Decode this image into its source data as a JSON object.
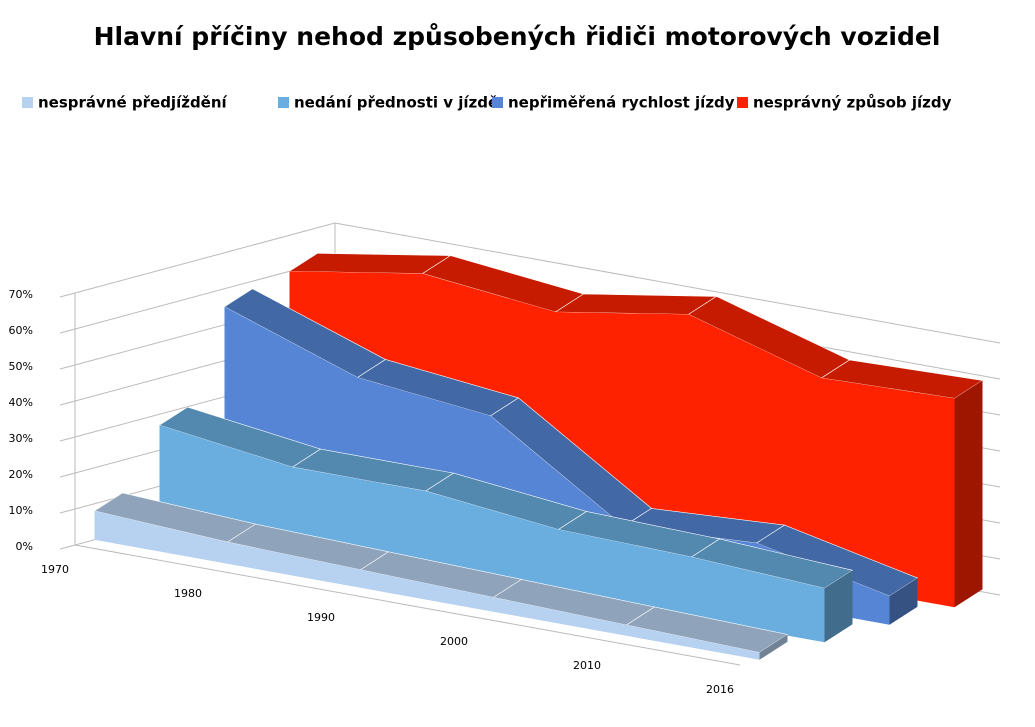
{
  "chart_data": {
    "type": "area3d",
    "title": "Hlavní příčiny nehod způsobených řidiči motorových vozidel",
    "categories": [
      "1970",
      "1980",
      "1990",
      "2000",
      "2010",
      "2016"
    ],
    "series": [
      {
        "name": "nesprávné předjíždění",
        "color": "#b7d1f0",
        "values": [
          8,
          6,
          5,
          4,
          3,
          2
        ]
      },
      {
        "name": "nedání přednosti v jízdě",
        "color": "#6aaee0",
        "values": [
          27,
          22,
          22,
          18,
          17,
          15
        ]
      },
      {
        "name": "nepřiměřená rychlost jízdy",
        "color": "#5585d4",
        "values": [
          55,
          42,
          38,
          14,
          16,
          8
        ]
      },
      {
        "name": "nesprávný způsob jízdy",
        "color": "#ff2200",
        "values": [
          60,
          66,
          62,
          68,
          57,
          58
        ]
      }
    ],
    "ylim": [
      0,
      70
    ],
    "yticks": [
      {
        "value": 0,
        "label": "0%"
      },
      {
        "value": 10,
        "label": "10%"
      },
      {
        "value": 20,
        "label": "20%"
      },
      {
        "value": 30,
        "label": "30%"
      },
      {
        "value": 40,
        "label": "40%"
      },
      {
        "value": 50,
        "label": "50%"
      },
      {
        "value": 60,
        "label": "60%"
      },
      {
        "value": 70,
        "label": "70%"
      }
    ],
    "grid": true
  }
}
